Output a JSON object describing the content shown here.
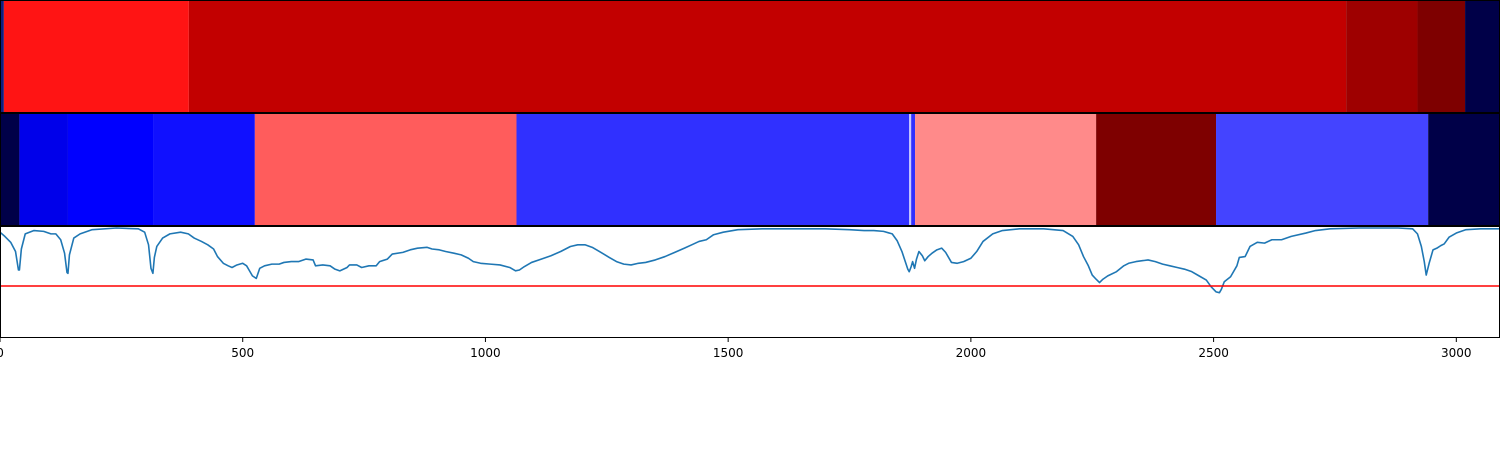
{
  "chart_data": {
    "type": "heatmap",
    "xlim": [
      0,
      3090
    ],
    "x_ticks": [
      0,
      500,
      1000,
      1500,
      2000,
      2500,
      3000
    ],
    "x_tick_labels": [
      "0",
      "500",
      "1000",
      "1500",
      "2000",
      "2500",
      "3000"
    ],
    "grid": false,
    "legend": "none",
    "rows": [
      {
        "segments": [
          {
            "start": 0,
            "end": 8,
            "color": "#102080"
          },
          {
            "start": 8,
            "end": 389,
            "color": "#ff1414"
          },
          {
            "start": 389,
            "end": 2773,
            "color": "#c20000"
          },
          {
            "start": 2773,
            "end": 2920,
            "color": "#9e0000"
          },
          {
            "start": 2920,
            "end": 3018,
            "color": "#7e0000"
          },
          {
            "start": 3018,
            "end": 3090,
            "color": "#000048"
          }
        ]
      },
      {
        "segments": [
          {
            "start": 0,
            "end": 40,
            "color": "#000048"
          },
          {
            "start": 40,
            "end": 140,
            "color": "#0000ea"
          },
          {
            "start": 140,
            "end": 317,
            "color": "#0000ff"
          },
          {
            "start": 317,
            "end": 525,
            "color": "#1010ff"
          },
          {
            "start": 525,
            "end": 1064,
            "color": "#ff5c5c"
          },
          {
            "start": 1064,
            "end": 1873,
            "color": "#3030ff"
          },
          {
            "start": 1873,
            "end": 1877,
            "color": "#c8c8ff"
          },
          {
            "start": 1877,
            "end": 1885,
            "color": "#3030ff"
          },
          {
            "start": 1885,
            "end": 2258,
            "color": "#ff8a8a"
          },
          {
            "start": 2258,
            "end": 2505,
            "color": "#7e0000"
          },
          {
            "start": 2505,
            "end": 2942,
            "color": "#4444ff"
          },
          {
            "start": 2942,
            "end": 3090,
            "color": "#000048"
          }
        ]
      }
    ],
    "line": {
      "color": "#1f77b4",
      "ylim": [
        0,
        1
      ],
      "points": [
        [
          0,
          0.95
        ],
        [
          10,
          0.9
        ],
        [
          22,
          0.83
        ],
        [
          32,
          0.72
        ],
        [
          38,
          0.5
        ],
        [
          40,
          0.5
        ],
        [
          44,
          0.75
        ],
        [
          52,
          0.93
        ],
        [
          70,
          0.97
        ],
        [
          90,
          0.96
        ],
        [
          105,
          0.93
        ],
        [
          115,
          0.93
        ],
        [
          125,
          0.86
        ],
        [
          133,
          0.7
        ],
        [
          138,
          0.47
        ],
        [
          140,
          0.46
        ],
        [
          143,
          0.68
        ],
        [
          152,
          0.88
        ],
        [
          165,
          0.93
        ],
        [
          190,
          0.98
        ],
        [
          240,
          1.0
        ],
        [
          285,
          0.99
        ],
        [
          298,
          0.95
        ],
        [
          306,
          0.8
        ],
        [
          311,
          0.52
        ],
        [
          315,
          0.46
        ],
        [
          318,
          0.65
        ],
        [
          323,
          0.78
        ],
        [
          335,
          0.88
        ],
        [
          350,
          0.93
        ],
        [
          372,
          0.95
        ],
        [
          388,
          0.93
        ],
        [
          400,
          0.88
        ],
        [
          415,
          0.84
        ],
        [
          428,
          0.8
        ],
        [
          440,
          0.75
        ],
        [
          448,
          0.66
        ],
        [
          460,
          0.58
        ],
        [
          470,
          0.55
        ],
        [
          478,
          0.53
        ],
        [
          488,
          0.56
        ],
        [
          500,
          0.58
        ],
        [
          508,
          0.55
        ],
        [
          513,
          0.5
        ],
        [
          520,
          0.43
        ],
        [
          528,
          0.4
        ],
        [
          535,
          0.52
        ],
        [
          545,
          0.55
        ],
        [
          560,
          0.57
        ],
        [
          575,
          0.57
        ],
        [
          585,
          0.59
        ],
        [
          600,
          0.6
        ],
        [
          615,
          0.6
        ],
        [
          630,
          0.63
        ],
        [
          645,
          0.62
        ],
        [
          650,
          0.55
        ],
        [
          665,
          0.56
        ],
        [
          680,
          0.55
        ],
        [
          690,
          0.51
        ],
        [
          700,
          0.49
        ],
        [
          715,
          0.53
        ],
        [
          720,
          0.56
        ],
        [
          735,
          0.56
        ],
        [
          745,
          0.53
        ],
        [
          760,
          0.55
        ],
        [
          775,
          0.55
        ],
        [
          782,
          0.6
        ],
        [
          798,
          0.63
        ],
        [
          808,
          0.69
        ],
        [
          830,
          0.71
        ],
        [
          845,
          0.74
        ],
        [
          860,
          0.76
        ],
        [
          880,
          0.77
        ],
        [
          890,
          0.75
        ],
        [
          905,
          0.74
        ],
        [
          918,
          0.72
        ],
        [
          935,
          0.7
        ],
        [
          950,
          0.68
        ],
        [
          965,
          0.64
        ],
        [
          975,
          0.6
        ],
        [
          990,
          0.58
        ],
        [
          1010,
          0.57
        ],
        [
          1030,
          0.56
        ],
        [
          1050,
          0.53
        ],
        [
          1062,
          0.49
        ],
        [
          1070,
          0.5
        ],
        [
          1080,
          0.54
        ],
        [
          1095,
          0.59
        ],
        [
          1115,
          0.63
        ],
        [
          1135,
          0.67
        ],
        [
          1155,
          0.72
        ],
        [
          1175,
          0.78
        ],
        [
          1190,
          0.8
        ],
        [
          1205,
          0.8
        ],
        [
          1220,
          0.77
        ],
        [
          1235,
          0.72
        ],
        [
          1255,
          0.65
        ],
        [
          1270,
          0.6
        ],
        [
          1285,
          0.57
        ],
        [
          1300,
          0.56
        ],
        [
          1315,
          0.58
        ],
        [
          1330,
          0.59
        ],
        [
          1350,
          0.62
        ],
        [
          1370,
          0.66
        ],
        [
          1390,
          0.71
        ],
        [
          1410,
          0.76
        ],
        [
          1425,
          0.8
        ],
        [
          1440,
          0.84
        ],
        [
          1455,
          0.86
        ],
        [
          1470,
          0.92
        ],
        [
          1490,
          0.95
        ],
        [
          1520,
          0.98
        ],
        [
          1570,
          0.99
        ],
        [
          1640,
          0.99
        ],
        [
          1700,
          0.99
        ],
        [
          1750,
          0.98
        ],
        [
          1780,
          0.97
        ],
        [
          1800,
          0.97
        ],
        [
          1820,
          0.96
        ],
        [
          1838,
          0.93
        ],
        [
          1848,
          0.85
        ],
        [
          1858,
          0.72
        ],
        [
          1866,
          0.58
        ],
        [
          1870,
          0.51
        ],
        [
          1873,
          0.48
        ],
        [
          1877,
          0.54
        ],
        [
          1880,
          0.6
        ],
        [
          1884,
          0.52
        ],
        [
          1888,
          0.63
        ],
        [
          1893,
          0.72
        ],
        [
          1900,
          0.67
        ],
        [
          1905,
          0.61
        ],
        [
          1912,
          0.66
        ],
        [
          1920,
          0.7
        ],
        [
          1930,
          0.74
        ],
        [
          1940,
          0.76
        ],
        [
          1948,
          0.71
        ],
        [
          1960,
          0.59
        ],
        [
          1972,
          0.58
        ],
        [
          1985,
          0.6
        ],
        [
          2000,
          0.64
        ],
        [
          2012,
          0.72
        ],
        [
          2025,
          0.84
        ],
        [
          2045,
          0.93
        ],
        [
          2065,
          0.97
        ],
        [
          2100,
          0.99
        ],
        [
          2150,
          0.99
        ],
        [
          2190,
          0.97
        ],
        [
          2210,
          0.9
        ],
        [
          2222,
          0.8
        ],
        [
          2232,
          0.66
        ],
        [
          2242,
          0.55
        ],
        [
          2250,
          0.44
        ],
        [
          2258,
          0.39
        ],
        [
          2265,
          0.35
        ],
        [
          2272,
          0.39
        ],
        [
          2282,
          0.43
        ],
        [
          2300,
          0.48
        ],
        [
          2315,
          0.55
        ],
        [
          2325,
          0.58
        ],
        [
          2340,
          0.6
        ],
        [
          2365,
          0.62
        ],
        [
          2380,
          0.6
        ],
        [
          2395,
          0.57
        ],
        [
          2410,
          0.55
        ],
        [
          2425,
          0.53
        ],
        [
          2440,
          0.51
        ],
        [
          2455,
          0.48
        ],
        [
          2470,
          0.43
        ],
        [
          2485,
          0.38
        ],
        [
          2495,
          0.3
        ],
        [
          2505,
          0.24
        ],
        [
          2512,
          0.23
        ],
        [
          2516,
          0.27
        ],
        [
          2522,
          0.36
        ],
        [
          2535,
          0.42
        ],
        [
          2548,
          0.55
        ],
        [
          2553,
          0.65
        ],
        [
          2565,
          0.66
        ],
        [
          2575,
          0.78
        ],
        [
          2590,
          0.83
        ],
        [
          2605,
          0.82
        ],
        [
          2620,
          0.86
        ],
        [
          2640,
          0.86
        ],
        [
          2660,
          0.9
        ],
        [
          2690,
          0.94
        ],
        [
          2710,
          0.97
        ],
        [
          2740,
          0.99
        ],
        [
          2800,
          1.0
        ],
        [
          2880,
          1.0
        ],
        [
          2910,
          0.99
        ],
        [
          2920,
          0.93
        ],
        [
          2928,
          0.78
        ],
        [
          2934,
          0.6
        ],
        [
          2938,
          0.44
        ],
        [
          2944,
          0.58
        ],
        [
          2952,
          0.74
        ],
        [
          2960,
          0.76
        ],
        [
          2968,
          0.79
        ],
        [
          2975,
          0.81
        ],
        [
          2985,
          0.89
        ],
        [
          3000,
          0.94
        ],
        [
          3020,
          0.98
        ],
        [
          3050,
          0.99
        ],
        [
          3090,
          0.99
        ]
      ]
    },
    "threshold": {
      "y": 0.31,
      "color": "#ff0000"
    }
  }
}
